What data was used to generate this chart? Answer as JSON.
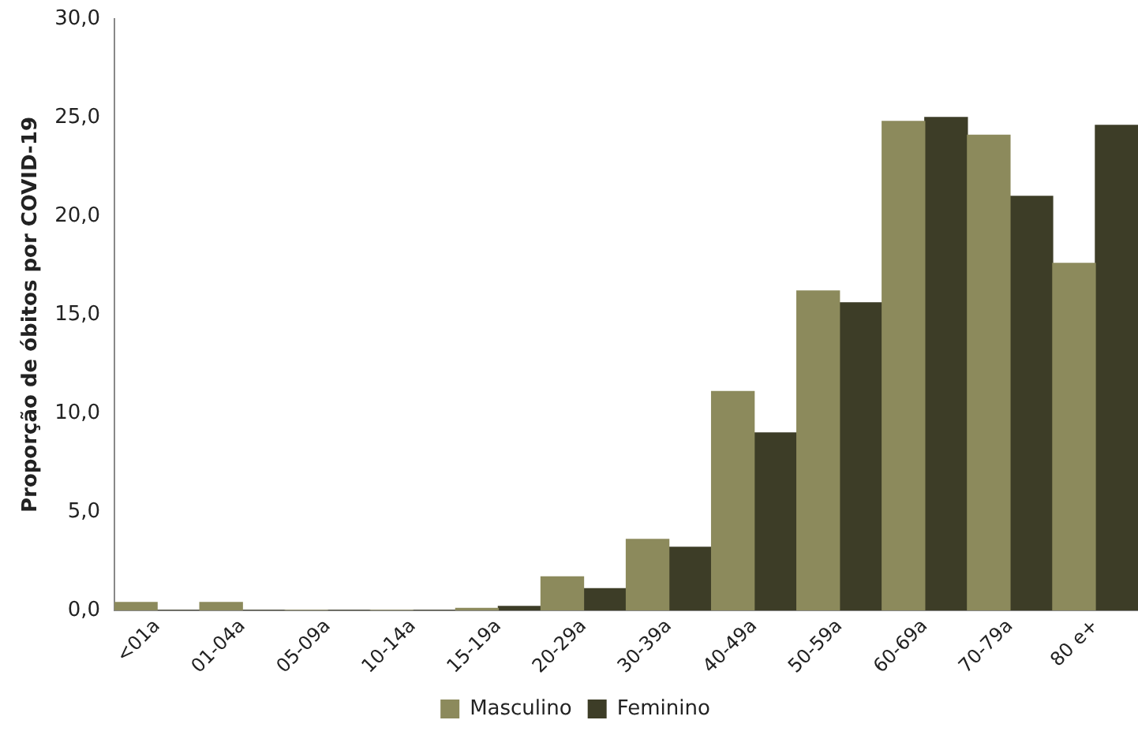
{
  "chart_data": {
    "type": "bar",
    "ylabel": "Proporção de óbitos por COVID-19",
    "categories": [
      "<01a",
      "01-04a",
      "05-09a",
      "10-14a",
      "15-19a",
      "20-29a",
      "30-39a",
      "40-49a",
      "50-59a",
      "60-69a",
      "70-79a",
      "80 e+"
    ],
    "series": [
      {
        "name": "Masculino",
        "color": "#8c8a5c",
        "values": [
          0.4,
          0.4,
          0,
          0,
          0.1,
          1.7,
          3.6,
          11.1,
          16.2,
          24.8,
          24.1,
          17.6
        ]
      },
      {
        "name": "Feminino",
        "color": "#3d3d27",
        "values": [
          0,
          0,
          0,
          0,
          0.2,
          1.1,
          3.2,
          9.0,
          15.6,
          25.0,
          21.0,
          24.6
        ]
      }
    ],
    "ylim": [
      0,
      30
    ],
    "yticks": [
      {
        "value": 0,
        "label": "0,0"
      },
      {
        "value": 5,
        "label": "5,0"
      },
      {
        "value": 10,
        "label": "10,0"
      },
      {
        "value": 15,
        "label": "15,0"
      },
      {
        "value": 20,
        "label": "20,0"
      },
      {
        "value": 25,
        "label": "25,0"
      },
      {
        "value": 30,
        "label": "30,0"
      }
    ],
    "grid": false,
    "legend": "bottom"
  }
}
